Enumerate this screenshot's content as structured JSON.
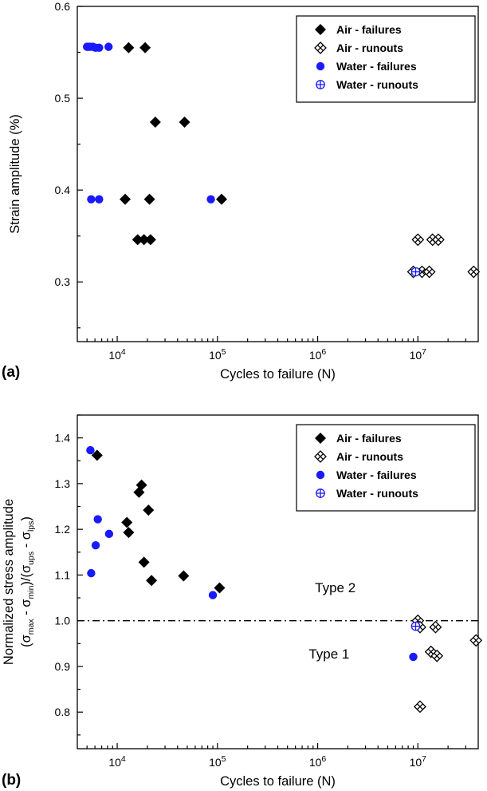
{
  "figure": {
    "panels": [
      {
        "label": "(a)"
      },
      {
        "label": "(b)"
      }
    ]
  },
  "colors": {
    "air": "#000000",
    "water": "#1a1aff",
    "frame": "#000000",
    "background": "#ffffff"
  },
  "chart_data": [
    {
      "type": "scatter",
      "panel": "a",
      "title": "",
      "xlabel": "Cycles to failure (N)",
      "ylabel_lines": [
        "Strain amplitude (%)"
      ],
      "xscale": "log",
      "xlim": [
        4000,
        40000000
      ],
      "ylim": [
        0.235,
        0.6
      ],
      "xticks": [
        10000,
        100000,
        1000000,
        10000000
      ],
      "yticks": [
        0.3,
        0.4,
        0.5,
        0.6
      ],
      "grid": false,
      "legend_position": "top-right",
      "series": [
        {
          "name": "Air - failures",
          "marker": "diamond-filled",
          "color": "#000000",
          "points": [
            [
              13000,
              0.555
            ],
            [
              19000,
              0.555
            ],
            [
              24000,
              0.474
            ],
            [
              47000,
              0.474
            ],
            [
              12000,
              0.39
            ],
            [
              21000,
              0.39
            ],
            [
              110000,
              0.39
            ],
            [
              16000,
              0.346
            ],
            [
              18500,
              0.346
            ],
            [
              21500,
              0.346
            ]
          ]
        },
        {
          "name": "Air - runouts",
          "marker": "diamond-crossed",
          "color": "#000000",
          "points": [
            [
              10000000,
              0.346
            ],
            [
              14000000,
              0.346
            ],
            [
              16000000,
              0.346
            ],
            [
              9000000,
              0.311
            ],
            [
              11000000,
              0.311
            ],
            [
              13000000,
              0.311
            ],
            [
              36000000,
              0.311
            ]
          ]
        },
        {
          "name": "Water - failures",
          "marker": "circle-filled",
          "color": "#1a1aff",
          "points": [
            [
              5000,
              0.556
            ],
            [
              5300,
              0.556
            ],
            [
              5700,
              0.556
            ],
            [
              6100,
              0.555
            ],
            [
              6600,
              0.555
            ],
            [
              8200,
              0.556
            ],
            [
              5500,
              0.39
            ],
            [
              6600,
              0.39
            ],
            [
              86000,
              0.39
            ]
          ]
        },
        {
          "name": "Water - runouts",
          "marker": "circle-plus",
          "color": "#1a1aff",
          "points": [
            [
              9500000,
              0.311
            ]
          ]
        }
      ]
    },
    {
      "type": "scatter",
      "panel": "b",
      "title": "",
      "xlabel": "Cycles to failure (N)",
      "ylabel_lines": [
        "Normalized stress amplitude",
        "(σ~max~ - σ~min~)/(σ~ups~ - σ~lps~)"
      ],
      "xscale": "log",
      "xlim": [
        4000,
        40000000
      ],
      "ylim": [
        0.72,
        1.45
      ],
      "xticks": [
        10000,
        100000,
        1000000,
        10000000
      ],
      "yticks": [
        0.8,
        0.9,
        1.0,
        1.1,
        1.2,
        1.3,
        1.4
      ],
      "grid": false,
      "legend_position": "top-right",
      "hline": {
        "y": 1.0,
        "style": "dash-dot"
      },
      "annotations": [
        {
          "text": "Type 2",
          "x": 1500000,
          "y": 1.073
        },
        {
          "text": "Type 1",
          "x": 1300000,
          "y": 0.928
        }
      ],
      "series": [
        {
          "name": "Air - failures",
          "marker": "diamond-filled",
          "color": "#000000",
          "points": [
            [
              6300,
              1.362
            ],
            [
              12500,
              1.215
            ],
            [
              13000,
              1.193
            ],
            [
              16500,
              1.281
            ],
            [
              17500,
              1.297
            ],
            [
              20500,
              1.242
            ],
            [
              18500,
              1.128
            ],
            [
              22000,
              1.088
            ],
            [
              46000,
              1.098
            ],
            [
              105000,
              1.072
            ]
          ]
        },
        {
          "name": "Air - runouts",
          "marker": "diamond-crossed",
          "color": "#000000",
          "points": [
            [
              10000000,
              1.0
            ],
            [
              10500000,
              0.986
            ],
            [
              15000000,
              0.986
            ],
            [
              13500000,
              0.932
            ],
            [
              15500000,
              0.923
            ],
            [
              10500000,
              0.812
            ],
            [
              38000000,
              0.957
            ]
          ]
        },
        {
          "name": "Water - failures",
          "marker": "circle-filled",
          "color": "#1a1aff",
          "points": [
            [
              5400,
              1.373
            ],
            [
              6400,
              1.222
            ],
            [
              6100,
              1.165
            ],
            [
              5500,
              1.104
            ],
            [
              8300,
              1.19
            ],
            [
              90000,
              1.056
            ],
            [
              9000000,
              0.921
            ]
          ]
        },
        {
          "name": "Water - runouts",
          "marker": "circle-plus",
          "color": "#1a1aff",
          "points": [
            [
              9500000,
              0.988
            ]
          ]
        }
      ]
    }
  ]
}
